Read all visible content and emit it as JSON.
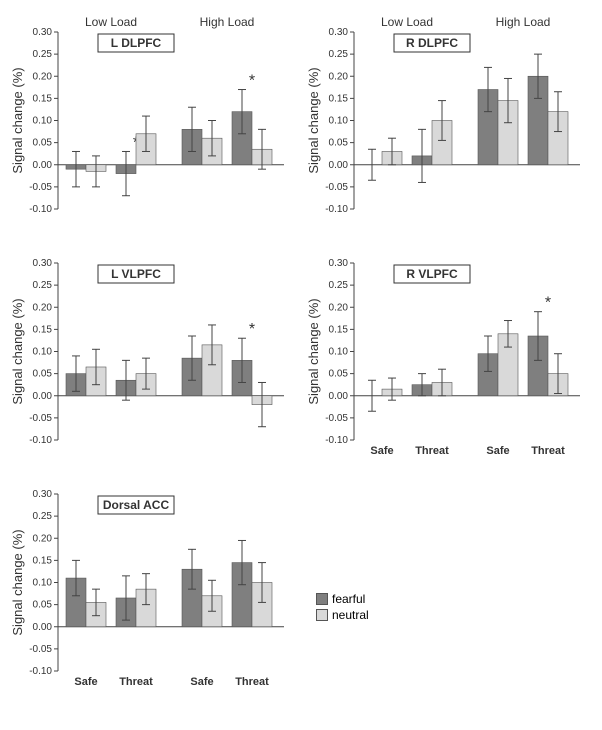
{
  "figure": {
    "legend": {
      "items": [
        {
          "label": "fearful",
          "color": "#7f7f7f"
        },
        {
          "label": "neutral",
          "color": "#d9d9d9"
        }
      ]
    },
    "common": {
      "ylabel": "Signal change (%)",
      "ylabel_fontsize": 13,
      "ylim": [
        -0.1,
        0.3
      ],
      "yticks": [
        -0.1,
        -0.05,
        0,
        0.05,
        0.1,
        0.15,
        0.2,
        0.25,
        0.3
      ],
      "load_labels": [
        "Low Load",
        "High Load"
      ],
      "cond_labels": [
        "Safe",
        "Threat"
      ],
      "bar_colors": {
        "fearful": "#7f7f7f",
        "neutral": "#d9d9d9"
      },
      "error_color": "#444444",
      "axis_color": "#444444",
      "tick_color": "#444444",
      "bg": "#ffffff",
      "bar_width": 0.8,
      "title_fontsize": 12,
      "tick_fontsize": 10,
      "sig_marker": "*",
      "sig_fontsize": 16
    },
    "panels": [
      {
        "title": "L DLPFC",
        "show_load_header": true,
        "show_cond_labels": false,
        "data": {
          "low": {
            "safe": {
              "fearful": {
                "v": -0.01,
                "e": 0.04
              },
              "neutral": {
                "v": -0.015,
                "e": 0.035
              }
            },
            "threat": {
              "fearful": {
                "v": -0.02,
                "e": 0.05,
                "sig": true
              },
              "neutral": {
                "v": 0.07,
                "e": 0.04
              }
            }
          },
          "high": {
            "safe": {
              "fearful": {
                "v": 0.08,
                "e": 0.05
              },
              "neutral": {
                "v": 0.06,
                "e": 0.04
              }
            },
            "threat": {
              "fearful": {
                "v": 0.12,
                "e": 0.05,
                "sig": true
              },
              "neutral": {
                "v": 0.035,
                "e": 0.045
              }
            }
          }
        }
      },
      {
        "title": "R DLPFC",
        "show_load_header": true,
        "show_cond_labels": false,
        "data": {
          "low": {
            "safe": {
              "fearful": {
                "v": 0.0,
                "e": 0.035
              },
              "neutral": {
                "v": 0.03,
                "e": 0.03
              }
            },
            "threat": {
              "fearful": {
                "v": 0.02,
                "e": 0.06
              },
              "neutral": {
                "v": 0.1,
                "e": 0.045
              }
            }
          },
          "high": {
            "safe": {
              "fearful": {
                "v": 0.17,
                "e": 0.05
              },
              "neutral": {
                "v": 0.145,
                "e": 0.05
              }
            },
            "threat": {
              "fearful": {
                "v": 0.2,
                "e": 0.05
              },
              "neutral": {
                "v": 0.12,
                "e": 0.045
              }
            }
          }
        }
      },
      {
        "title": "L VLPFC",
        "show_load_header": false,
        "show_cond_labels": false,
        "data": {
          "low": {
            "safe": {
              "fearful": {
                "v": 0.05,
                "e": 0.04
              },
              "neutral": {
                "v": 0.065,
                "e": 0.04
              }
            },
            "threat": {
              "fearful": {
                "v": 0.035,
                "e": 0.045
              },
              "neutral": {
                "v": 0.05,
                "e": 0.035
              }
            }
          },
          "high": {
            "safe": {
              "fearful": {
                "v": 0.085,
                "e": 0.05
              },
              "neutral": {
                "v": 0.115,
                "e": 0.045
              }
            },
            "threat": {
              "fearful": {
                "v": 0.08,
                "e": 0.05,
                "sig": true
              },
              "neutral": {
                "v": -0.02,
                "e": 0.05
              }
            }
          }
        }
      },
      {
        "title": "R VLPFC",
        "show_load_header": false,
        "show_cond_labels": true,
        "data": {
          "low": {
            "safe": {
              "fearful": {
                "v": 0.0,
                "e": 0.035
              },
              "neutral": {
                "v": 0.015,
                "e": 0.025
              }
            },
            "threat": {
              "fearful": {
                "v": 0.025,
                "e": 0.025
              },
              "neutral": {
                "v": 0.03,
                "e": 0.03
              }
            }
          },
          "high": {
            "safe": {
              "fearful": {
                "v": 0.095,
                "e": 0.04
              },
              "neutral": {
                "v": 0.14,
                "e": 0.03
              }
            },
            "threat": {
              "fearful": {
                "v": 0.135,
                "e": 0.055,
                "sig": true
              },
              "neutral": {
                "v": 0.05,
                "e": 0.045
              }
            }
          }
        }
      },
      {
        "title": "Dorsal ACC",
        "show_load_header": false,
        "show_cond_labels": true,
        "show_legend": true,
        "data": {
          "low": {
            "safe": {
              "fearful": {
                "v": 0.11,
                "e": 0.04
              },
              "neutral": {
                "v": 0.055,
                "e": 0.03
              }
            },
            "threat": {
              "fearful": {
                "v": 0.065,
                "e": 0.05
              },
              "neutral": {
                "v": 0.085,
                "e": 0.035
              }
            }
          },
          "high": {
            "safe": {
              "fearful": {
                "v": 0.13,
                "e": 0.045
              },
              "neutral": {
                "v": 0.07,
                "e": 0.035
              }
            },
            "threat": {
              "fearful": {
                "v": 0.145,
                "e": 0.05
              },
              "neutral": {
                "v": 0.1,
                "e": 0.045
              }
            }
          }
        }
      }
    ]
  }
}
